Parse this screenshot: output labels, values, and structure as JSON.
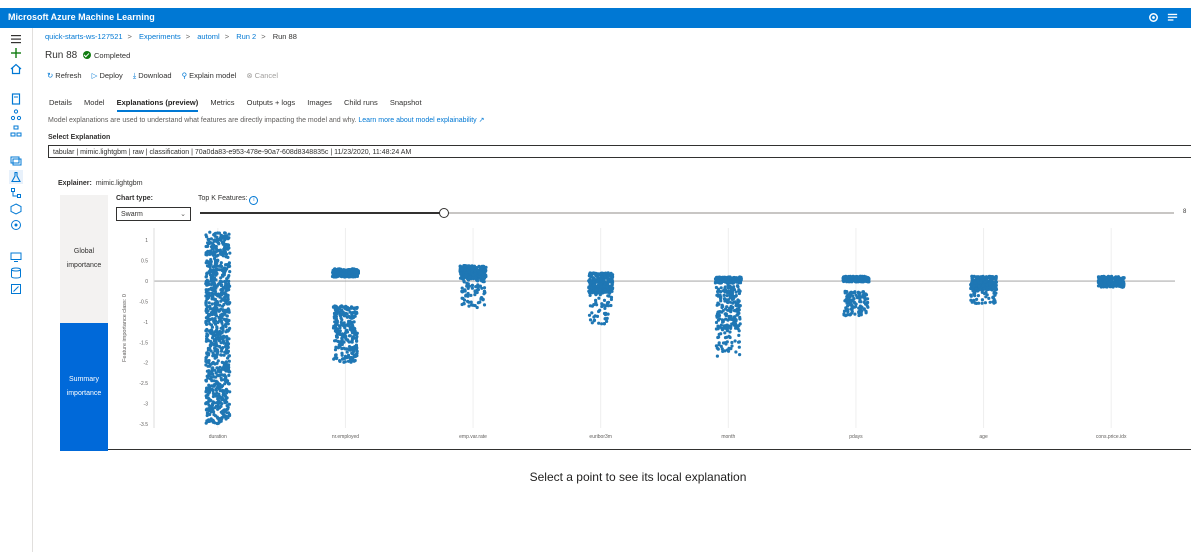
{
  "app": {
    "title": "Microsoft Azure Machine Learning"
  },
  "breadcrumbs": [
    {
      "label": "quick-starts-ws-127521"
    },
    {
      "label": "Experiments"
    },
    {
      "label": "automl"
    },
    {
      "label": "Run 2"
    },
    {
      "label": "Run 88"
    }
  ],
  "breadcrumb_separator": ">",
  "run": {
    "title": "Run 88",
    "status": "Completed",
    "status_color": "#107c10"
  },
  "commands": [
    {
      "label": "Refresh",
      "icon": "refresh-icon",
      "glyph": "↻",
      "disabled": false
    },
    {
      "label": "Deploy",
      "icon": "deploy-icon",
      "glyph": "▷",
      "disabled": false
    },
    {
      "label": "Download",
      "icon": "download-icon",
      "glyph": "⤓",
      "disabled": false
    },
    {
      "label": "Explain model",
      "icon": "explain-icon",
      "glyph": "⚲",
      "disabled": false
    },
    {
      "label": "Cancel",
      "icon": "cancel-icon",
      "glyph": "⊗",
      "disabled": true
    }
  ],
  "tabs": [
    {
      "label": "Details",
      "active": false
    },
    {
      "label": "Model",
      "active": false
    },
    {
      "label": "Explanations (preview)",
      "active": true
    },
    {
      "label": "Metrics",
      "active": false
    },
    {
      "label": "Outputs + logs",
      "active": false
    },
    {
      "label": "Images",
      "active": false
    },
    {
      "label": "Child runs",
      "active": false
    },
    {
      "label": "Snapshot",
      "active": false
    }
  ],
  "description": {
    "text": "Model explanations are used to understand what features are directly impacting the model and why.",
    "link": "Learn more about model explainability"
  },
  "select_explanation": {
    "label": "Select Explanation",
    "value": "tabular | mimic.lightgbm | raw | classification | 70a0da83-e953-478e-90a7-608d8348835c | 11/23/2020, 11:48:24 AM"
  },
  "explainer": {
    "label": "Explainer:",
    "value": "mimic.lightgbm"
  },
  "importance_tabs": [
    {
      "label": "Global importance",
      "active": false
    },
    {
      "label": "Summary importance",
      "active": true
    }
  ],
  "chart_type": {
    "label": "Chart type:",
    "value": "Swarm"
  },
  "top_k": {
    "label": "Top K Features:",
    "value": 8,
    "min": 1,
    "max": 8,
    "slider_fraction": 0.25
  },
  "chart_data": {
    "type": "scatter",
    "subtype": "swarm",
    "ylabel": "Feature importance class: 0",
    "ylim": [
      -3.6,
      1.3
    ],
    "yticks": [
      "1",
      "0.5",
      "0",
      "-0.5",
      "-1",
      "-1.5",
      "-2",
      "-2.5",
      "-3",
      "-3.5"
    ],
    "yticks_values": [
      1,
      0.5,
      0,
      -0.5,
      -1,
      -1.5,
      -2,
      -2.5,
      -3,
      -3.5
    ],
    "color": "#1f77b4",
    "categories": [
      "duration",
      "nr.employed",
      "emp.var.rate",
      "euribor3m",
      "month",
      "pdays",
      "age",
      "cons.price.idx"
    ],
    "groups": [
      {
        "name": "duration",
        "clusters": [
          {
            "min": -3.5,
            "max": 1.2,
            "n": 900
          }
        ]
      },
      {
        "name": "nr.employed",
        "clusters": [
          {
            "min": 0.1,
            "max": 0.3,
            "n": 220
          },
          {
            "min": -2.0,
            "max": -0.6,
            "n": 260
          }
        ]
      },
      {
        "name": "emp.var.rate",
        "clusters": [
          {
            "min": 0.05,
            "max": 0.38,
            "n": 260
          },
          {
            "min": -0.65,
            "max": 0.05,
            "n": 70
          }
        ]
      },
      {
        "name": "euribor3m",
        "clusters": [
          {
            "min": -0.3,
            "max": 0.2,
            "n": 260
          },
          {
            "min": -1.05,
            "max": -0.3,
            "n": 50
          }
        ]
      },
      {
        "name": "month",
        "clusters": [
          {
            "min": -0.05,
            "max": 0.1,
            "n": 170
          },
          {
            "min": -1.2,
            "max": -0.1,
            "n": 200
          },
          {
            "min": -1.85,
            "max": -1.2,
            "n": 40
          }
        ]
      },
      {
        "name": "pdays",
        "clusters": [
          {
            "min": -0.02,
            "max": 0.12,
            "n": 170
          },
          {
            "min": -0.85,
            "max": -0.25,
            "n": 120
          }
        ]
      },
      {
        "name": "age",
        "clusters": [
          {
            "min": -0.22,
            "max": 0.12,
            "n": 230
          },
          {
            "min": -0.55,
            "max": -0.22,
            "n": 40
          }
        ]
      },
      {
        "name": "cons.price.idx",
        "clusters": [
          {
            "min": -0.15,
            "max": 0.12,
            "n": 200
          }
        ]
      }
    ]
  },
  "hint": "Select a point to see its local explanation"
}
